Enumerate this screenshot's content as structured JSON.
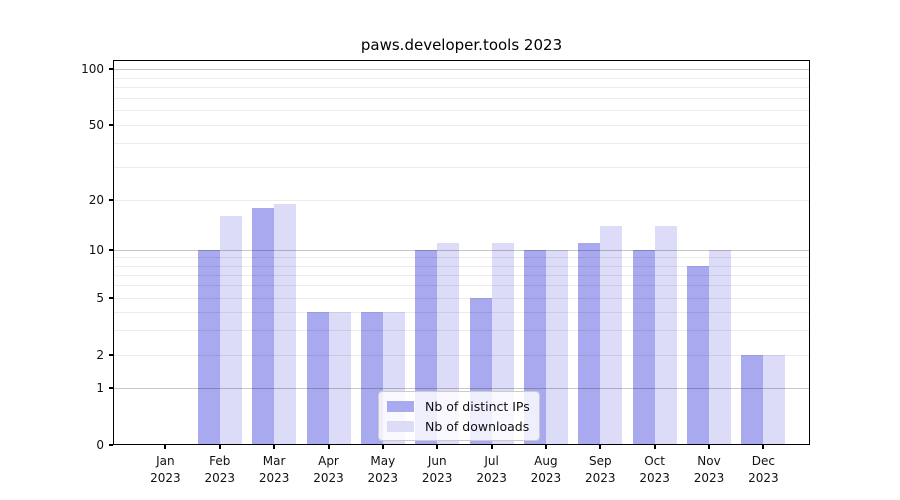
{
  "title": "paws.developer.tools 2023",
  "legend": {
    "items": [
      {
        "label": "Nb of distinct IPs",
        "color": "#a9a9ef"
      },
      {
        "label": "Nb of downloads",
        "color": "#dcdcf8"
      }
    ]
  },
  "axes": {
    "y_tick_labels": [
      "100",
      "50",
      "20",
      "10",
      "5",
      "2",
      "1",
      "0"
    ],
    "x_tick_labels": [
      "Jan 2023",
      "Feb 2023",
      "Mar 2023",
      "Apr 2023",
      "May 2023",
      "Jun 2023",
      "Jul 2023",
      "Aug 2023",
      "Sep 2023",
      "Oct 2023",
      "Nov 2023",
      "Dec 2023"
    ]
  },
  "chart_data": {
    "type": "bar",
    "title": "paws.developer.tools 2023",
    "categories": [
      "Jan 2023",
      "Feb 2023",
      "Mar 2023",
      "Apr 2023",
      "May 2023",
      "Jun 2023",
      "Jul 2023",
      "Aug 2023",
      "Sep 2023",
      "Oct 2023",
      "Nov 2023",
      "Dec 2023"
    ],
    "series": [
      {
        "name": "Nb of distinct IPs",
        "color": "#a9a9ef",
        "values": [
          0,
          10,
          18,
          4,
          4,
          10,
          5,
          10,
          11,
          10,
          8,
          2
        ]
      },
      {
        "name": "Nb of downloads",
        "color": "#dcdcf8",
        "values": [
          0,
          16,
          19,
          4,
          4,
          11,
          11,
          10,
          14,
          14,
          10,
          2
        ]
      }
    ],
    "yscale": "symlog",
    "yticks": [
      0,
      1,
      2,
      5,
      10,
      20,
      50,
      100
    ],
    "ylim": [
      0,
      113
    ],
    "grid": "horizontal; major gridlines at 1, 10, 100; minor at 2-9 mantissa steps",
    "legend_position": "lower center"
  }
}
